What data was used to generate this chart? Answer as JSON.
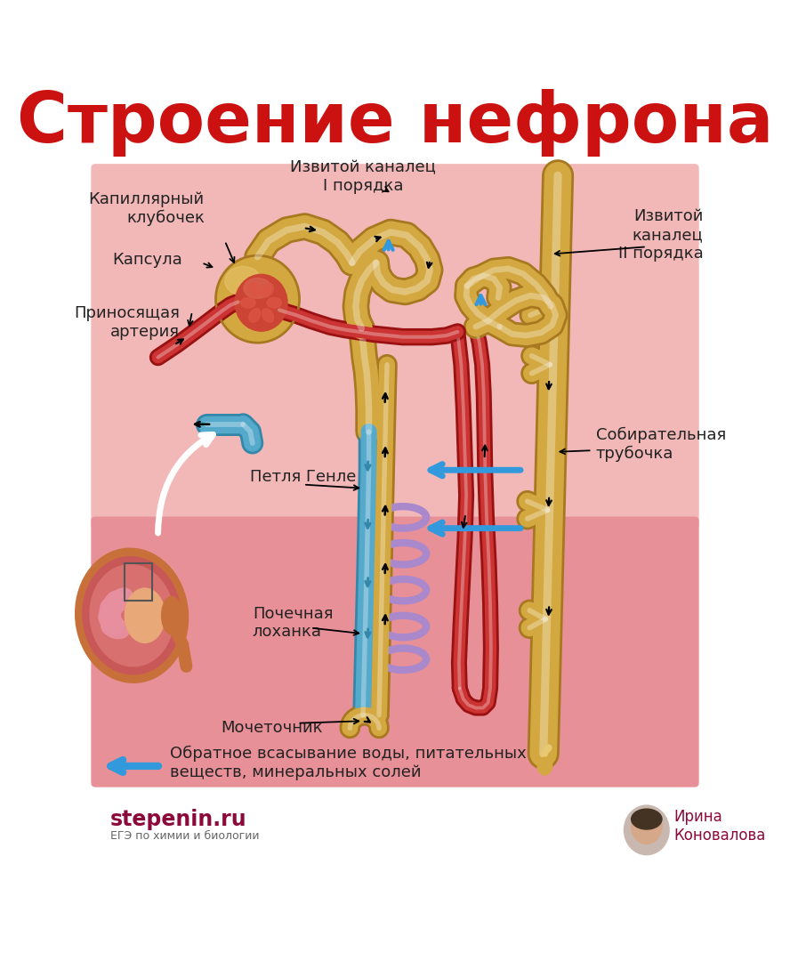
{
  "title": "Строение нефрона",
  "title_color": "#cc1111",
  "title_fontsize": 56,
  "bg_color": "#ffffff",
  "diagram_bg_top": "#f0b8b8",
  "diagram_bg_bottom": "#e8909a",
  "labels": {
    "kapillarny": "Капиллярный\nклубочек",
    "kapsula": "Капсула",
    "prinosyashaya": "Приносящая\nартерия",
    "izvitoy1": "Извитой каналец\nI порядка",
    "izvitoy2": "Извитой\nканалец\nII порядка",
    "petlya": "Петля Генле",
    "pochechnaya": "Почечная\nлоханка",
    "mochetochnik": "Мочеточник",
    "sobiratel": "Собирательная\nтрубочка",
    "obratnoe": "Обратное всасывание воды, питательных\nвеществ, минеральных солей",
    "stepenin": "stepenin.ru",
    "ege": "ЕГЭ по химии и биологии",
    "irina": "Ирина\nКоновалова"
  },
  "label_color": "#222222",
  "label_fontsize": 13,
  "nephron_gold": "#d4a840",
  "nephron_light_gold": "#e8c870",
  "nephron_dark_gold": "#a87820",
  "artery_red": "#cc3333",
  "artery_light": "#e05555",
  "vein_blue": "#55aacc",
  "vein_dark": "#3388aa",
  "loop_purple": "#aa88cc",
  "arrow_blue": "#3399dd",
  "arrow_black": "#111111"
}
